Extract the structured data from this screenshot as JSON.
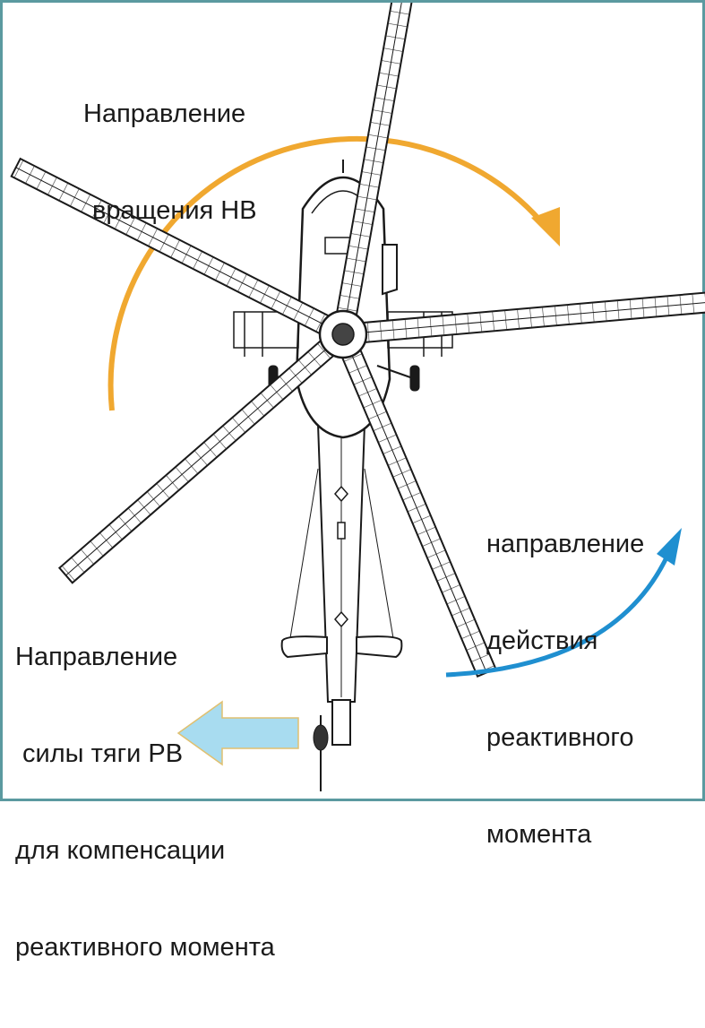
{
  "labels": {
    "rotation_line1": "Направление",
    "rotation_line2": "вращения НВ",
    "reactive_line1": "направление",
    "reactive_line2": "действия",
    "reactive_line3": "реактивного",
    "reactive_line4": "момента",
    "tail_line1": "Направление",
    "tail_line2": " силы тяги РВ",
    "tail_line3": "для компенсации",
    "tail_line4": "реактивного момента"
  },
  "colors": {
    "frame_border": "#5b9aa0",
    "rotation_arrow": "#f0a830",
    "reactive_arrow": "#1f8fd0",
    "thrust_arrow": "#a8dcf0",
    "drawing_ink": "#1a1a1a"
  },
  "icons": {
    "helicopter": "helicopter-top-view-icon",
    "rotation_arrow": "curved-arrow-clockwise-icon",
    "reactive_arrow": "curved-arrow-icon",
    "thrust_arrow": "left-arrow-icon"
  }
}
